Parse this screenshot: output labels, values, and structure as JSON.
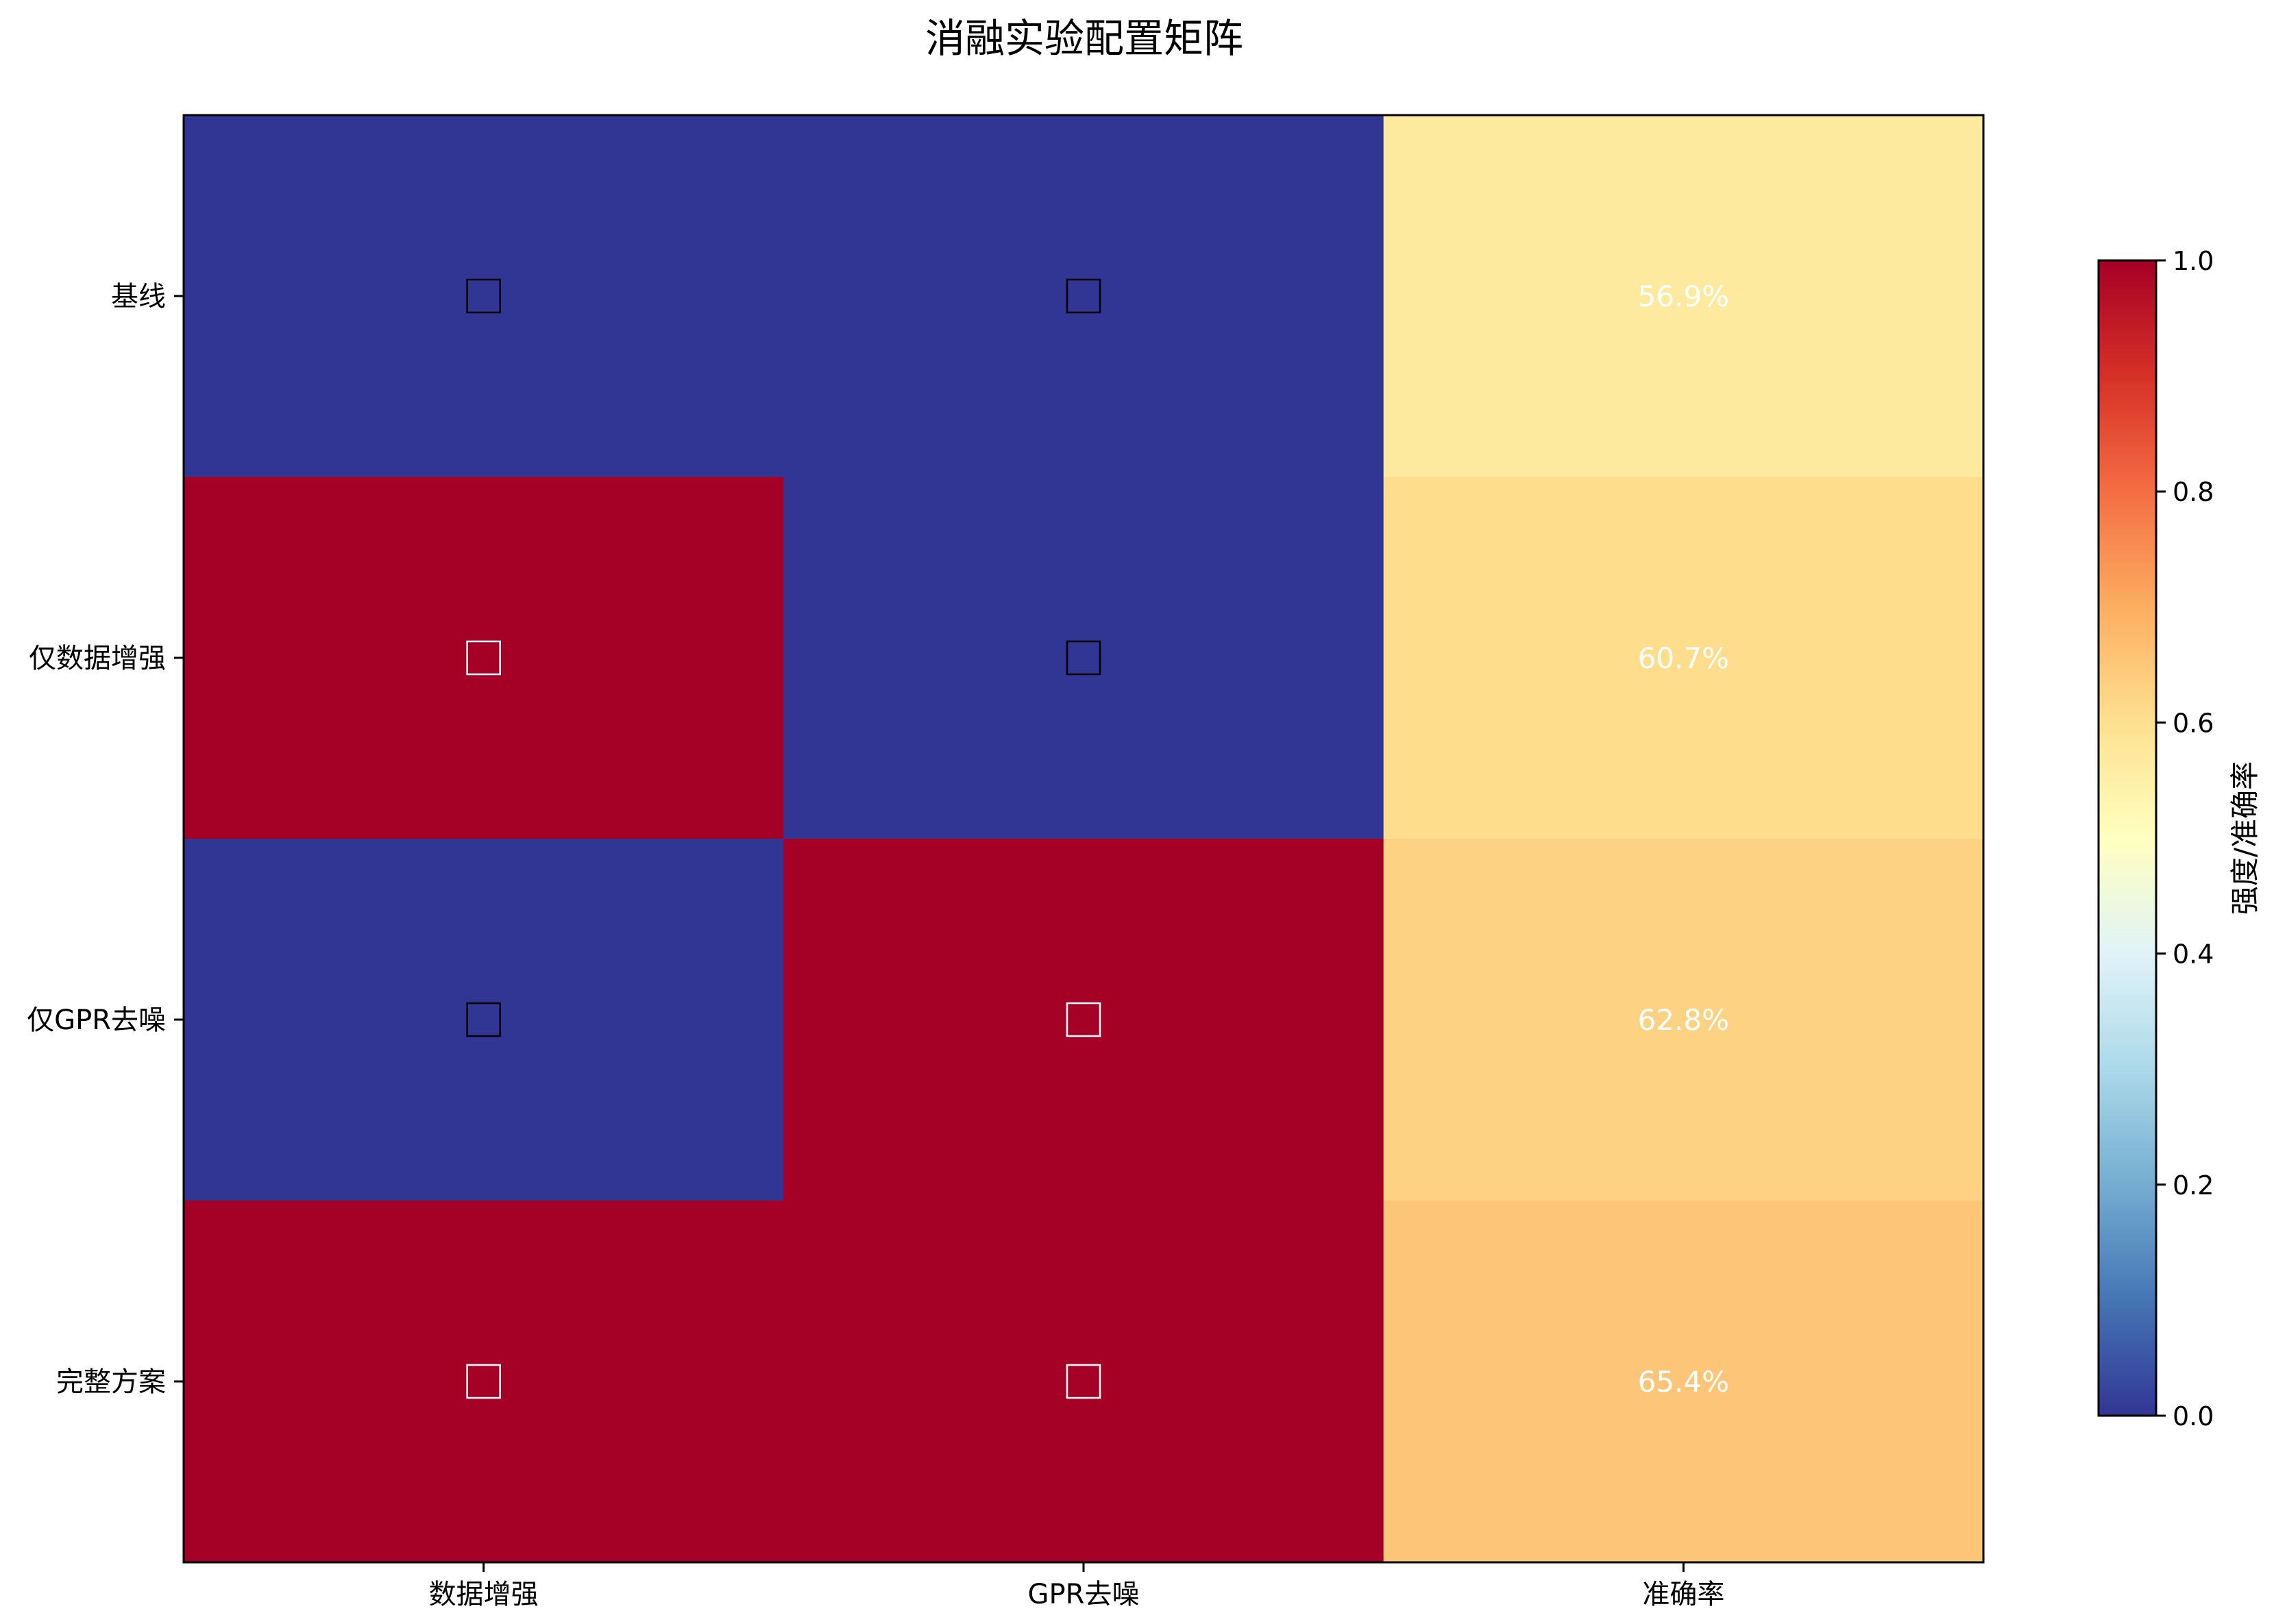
{
  "chart_data": {
    "type": "heatmap",
    "title": "消融实验配置矩阵",
    "rows": [
      "基线",
      "仅数据增强",
      "仅GPR去噪",
      "完整方案"
    ],
    "columns": [
      "数据增强",
      "GPR去噪",
      "准确率"
    ],
    "values": [
      [
        0,
        0,
        0.569
      ],
      [
        1,
        0,
        0.607
      ],
      [
        0,
        1,
        0.628
      ],
      [
        1,
        1,
        0.654
      ]
    ],
    "cell_labels": [
      [
        "□",
        "□",
        "56.9%"
      ],
      [
        "□",
        "□",
        "60.7%"
      ],
      [
        "□",
        "□",
        "62.8%"
      ],
      [
        "□",
        "□",
        "65.4%"
      ]
    ],
    "colormap": "RdYlBu_r",
    "colorbar": {
      "label": "强度/准确率",
      "vmin": 0.0,
      "vmax": 1.0,
      "ticks": [
        "0.0",
        "0.2",
        "0.4",
        "0.6",
        "0.8",
        "1.0"
      ]
    },
    "colors": {
      "off": "#313695",
      "on": "#a50026",
      "label_text": "#ffffff"
    }
  }
}
